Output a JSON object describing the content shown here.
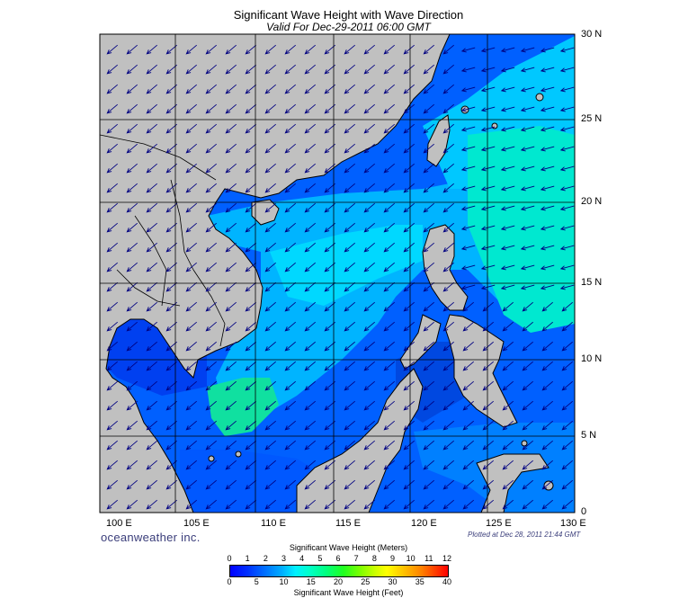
{
  "header": {
    "title": "Significant Wave Height with Wave Direction",
    "subtitle": "Valid For Dec-29-2011 06:00 GMT"
  },
  "map": {
    "lat_labels": [
      "30 N",
      "25 N",
      "20 N",
      "15 N",
      "10 N",
      "5 N",
      "0"
    ],
    "lon_labels": [
      "100 E",
      "105 E",
      "110 E",
      "115 E",
      "120 E",
      "125 E",
      "130 E"
    ],
    "land_color": "#c0c0c0",
    "grid_color": "#000000",
    "arrow_color": "#000080",
    "wave_direction": "from northeast"
  },
  "footer": {
    "brand": "oceanweather inc.",
    "plotted": "Plotted at Dec 28, 2011 21:44 GMT"
  },
  "legend": {
    "meters_title": "Significant Wave Height (Meters)",
    "feet_title": "Significant Wave Height (Feet)",
    "meters_ticks": [
      "0",
      "1",
      "2",
      "3",
      "4",
      "5",
      "6",
      "7",
      "8",
      "9",
      "10",
      "11",
      "12"
    ],
    "feet_ticks": [
      "0",
      "5",
      "10",
      "15",
      "20",
      "25",
      "30",
      "35",
      "40"
    ]
  }
}
